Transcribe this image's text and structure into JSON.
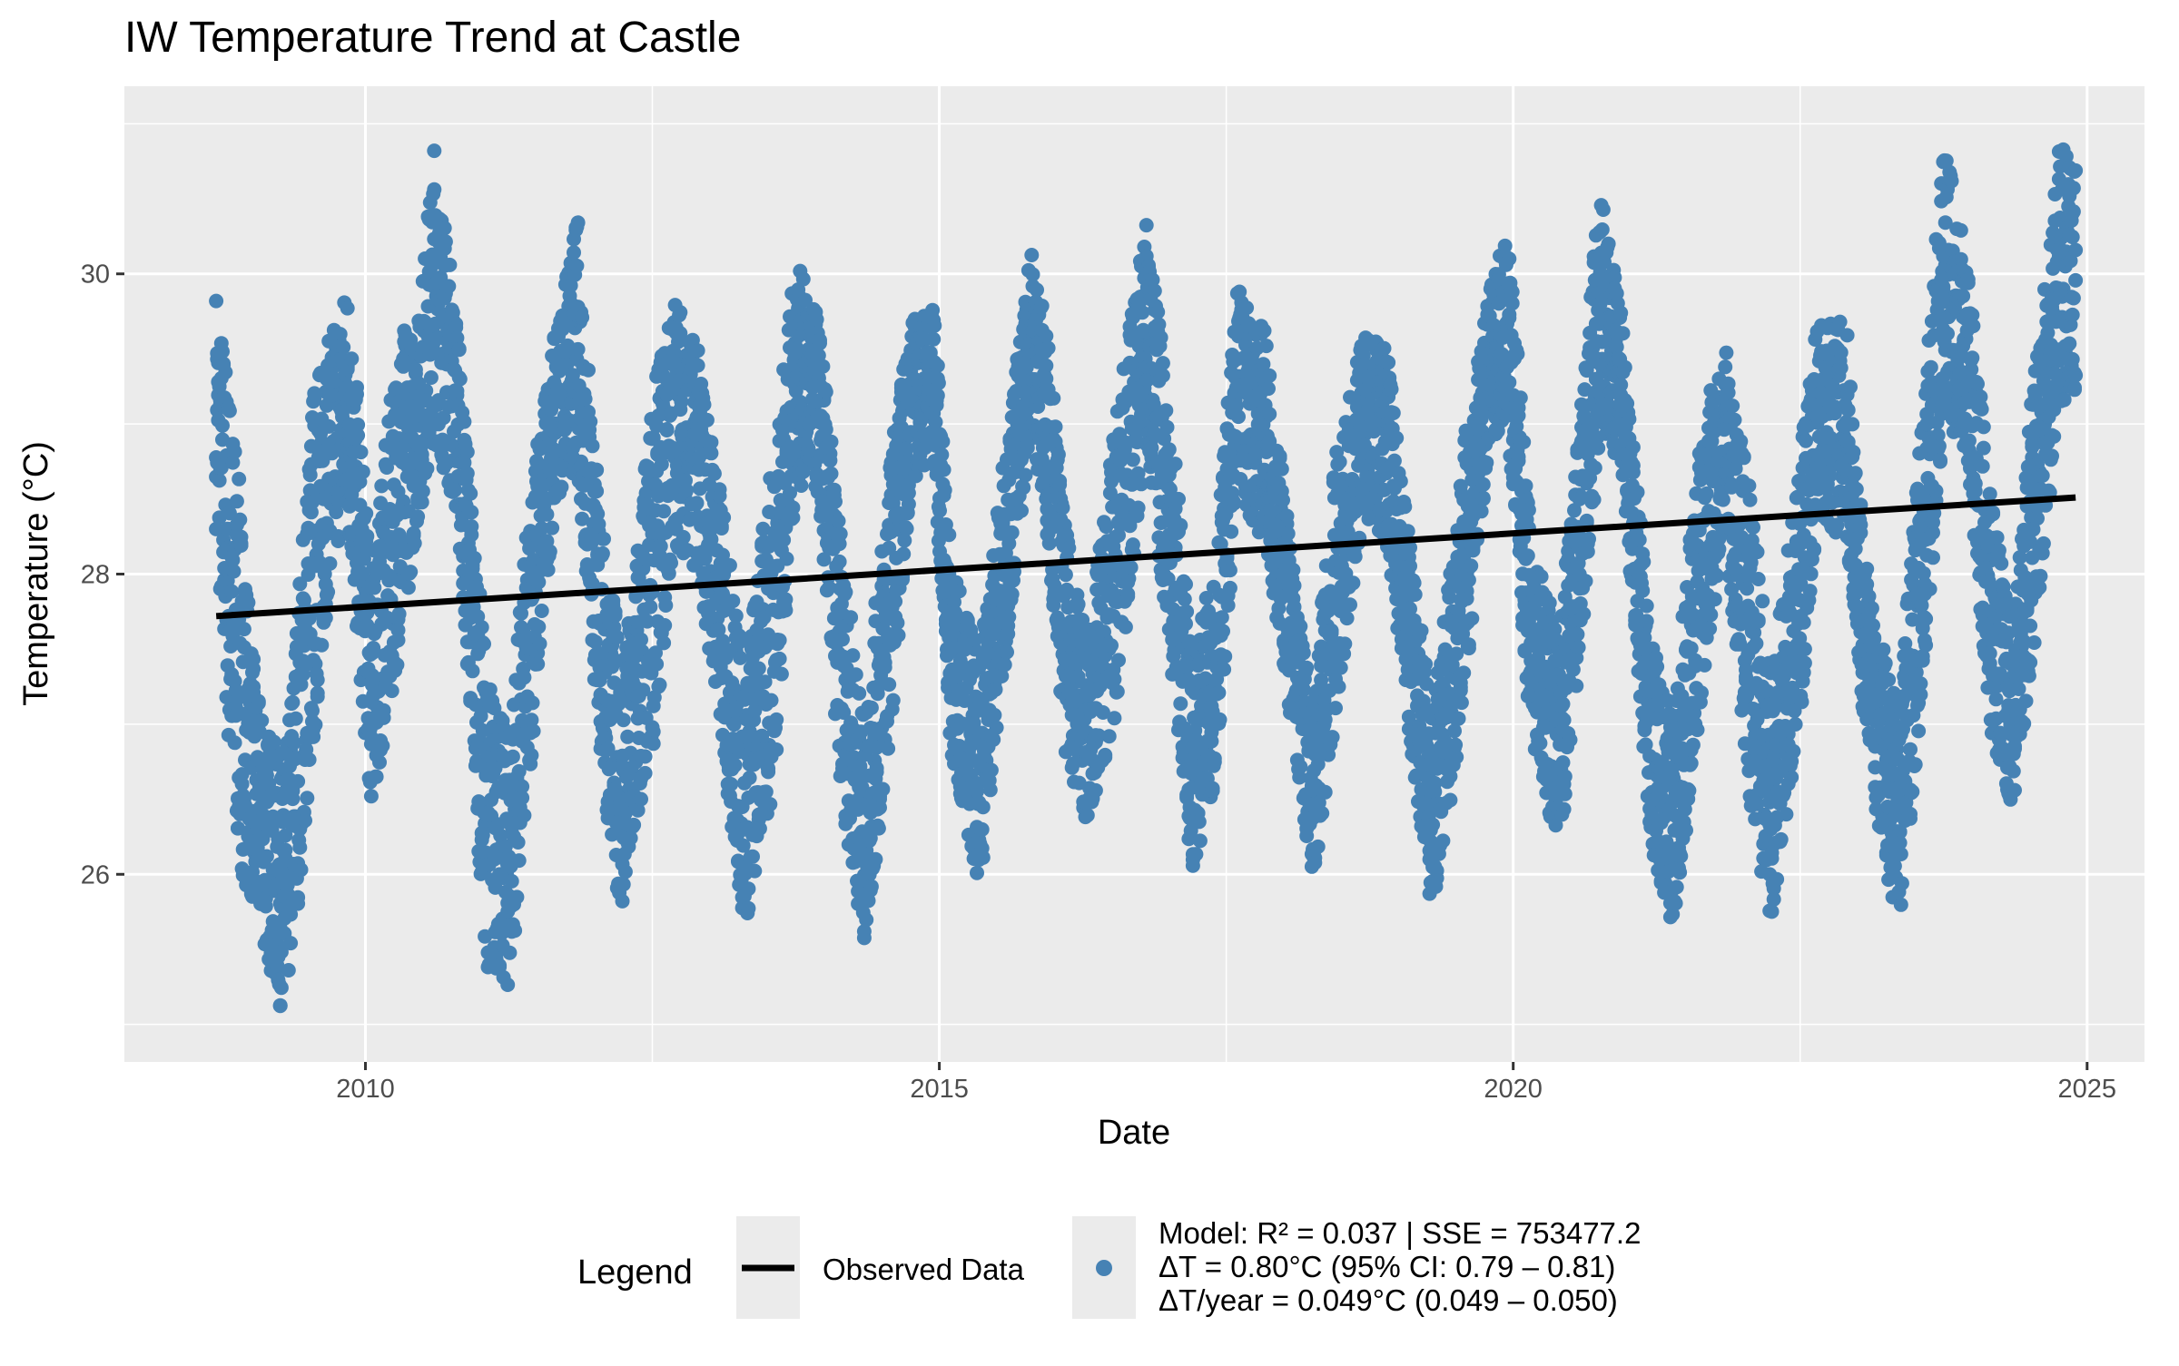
{
  "chart_data": {
    "type": "scatter",
    "title": "IW Temperature Trend at Castle",
    "xlabel": "Date",
    "ylabel": "Temperature (°C)",
    "xlim": [
      2007.9,
      2025.5
    ],
    "ylim": [
      24.75,
      31.25
    ],
    "x_ticks": [
      2010,
      2015,
      2020,
      2025
    ],
    "y_ticks": [
      26,
      28,
      30
    ],
    "grid": true,
    "legend": {
      "title": "Legend",
      "position": "bottom",
      "entries": [
        {
          "label": "Observed Data",
          "marker": "line",
          "color": "#000000"
        },
        {
          "label": "Model: R² = 0.037 | SSE = 753477.2\nΔT = 0.80°C (95% CI: 0.79 – 0.81)\nΔT/year = 0.049°C (0.049 – 0.050)",
          "marker": "point",
          "color": "#4682B4"
        }
      ]
    },
    "colors": {
      "points": "#4682B4",
      "trend": "#000000",
      "panel": "#EBEBEB",
      "grid": "#FFFFFF"
    },
    "trend": {
      "x": [
        2008.7,
        2024.9
      ],
      "y": [
        27.72,
        28.51
      ]
    },
    "series": [
      {
        "type": "scatter",
        "envelope": {
          "x": [
            2008.7,
            2008.85,
            2009.05,
            2009.3,
            2009.55,
            2009.7,
            2009.85,
            2010.05,
            2010.3,
            2010.45,
            2010.6,
            2010.8,
            2011.05,
            2011.25,
            2011.45,
            2011.65,
            2011.85,
            2012.05,
            2012.25,
            2012.5,
            2012.7,
            2012.9,
            2013.05,
            2013.3,
            2013.55,
            2013.75,
            2013.95,
            2014.15,
            2014.35,
            2014.55,
            2014.75,
            2014.95,
            2015.1,
            2015.35,
            2015.55,
            2015.8,
            2015.95,
            2016.1,
            2016.3,
            2016.55,
            2016.8,
            2017.05,
            2017.2,
            2017.4,
            2017.6,
            2017.85,
            2018.05,
            2018.25,
            2018.45,
            2018.7,
            2018.9,
            2019.1,
            2019.3,
            2019.55,
            2019.8,
            2019.95,
            2020.15,
            2020.4,
            2020.6,
            2020.75,
            2020.95,
            2021.2,
            2021.4,
            2021.65,
            2021.85,
            2022.05,
            2022.25,
            2022.5,
            2022.65,
            2022.9,
            2023.1,
            2023.35,
            2023.55,
            2023.75,
            2023.95,
            2024.15,
            2024.35,
            2024.55,
            2024.75,
            2024.9
          ],
          "lower": [
            28.3,
            26.2,
            25.7,
            25.0,
            26.8,
            28.1,
            28.3,
            26.4,
            27.5,
            28.3,
            28.9,
            28.4,
            25.4,
            25.2,
            26.8,
            28.5,
            28.7,
            26.7,
            25.6,
            26.8,
            28.2,
            28.0,
            27.2,
            25.6,
            26.5,
            28.6,
            28.5,
            26.5,
            25.5,
            26.7,
            28.6,
            28.8,
            26.8,
            25.9,
            27.2,
            29.0,
            28.2,
            26.8,
            26.3,
            27.1,
            28.8,
            27.2,
            26.0,
            26.6,
            28.5,
            28.2,
            27.1,
            25.9,
            27.0,
            28.4,
            28.2,
            26.9,
            25.7,
            27.0,
            28.9,
            29.0,
            26.9,
            26.1,
            27.5,
            28.8,
            28.7,
            26.2,
            25.6,
            27.2,
            28.3,
            26.4,
            25.7,
            27.0,
            28.4,
            28.2,
            26.7,
            25.6,
            27.0,
            29.0,
            28.8,
            27.0,
            26.4,
            27.6,
            29.1,
            29.2
          ],
          "upper": [
            29.95,
            29.1,
            27.2,
            26.7,
            29.3,
            29.6,
            30.0,
            28.0,
            29.7,
            29.6,
            30.9,
            29.7,
            27.4,
            26.9,
            28.7,
            29.6,
            30.4,
            28.4,
            27.4,
            29.2,
            29.9,
            29.5,
            28.8,
            27.4,
            28.8,
            30.1,
            29.7,
            28.2,
            27.0,
            28.7,
            29.7,
            29.8,
            28.1,
            27.5,
            28.7,
            30.2,
            29.6,
            28.3,
            27.6,
            29.1,
            30.4,
            28.9,
            27.4,
            28.1,
            29.9,
            29.6,
            28.3,
            27.1,
            28.8,
            29.6,
            29.5,
            28.2,
            27.1,
            28.8,
            29.9,
            30.4,
            28.3,
            27.6,
            29.2,
            30.6,
            29.7,
            27.6,
            27.1,
            29.1,
            29.5,
            28.7,
            27.3,
            28.8,
            29.7,
            29.7,
            27.9,
            27.2,
            28.9,
            30.9,
            30.1,
            28.6,
            27.7,
            29.5,
            30.9,
            30.7
          ]
        }
      }
    ]
  }
}
